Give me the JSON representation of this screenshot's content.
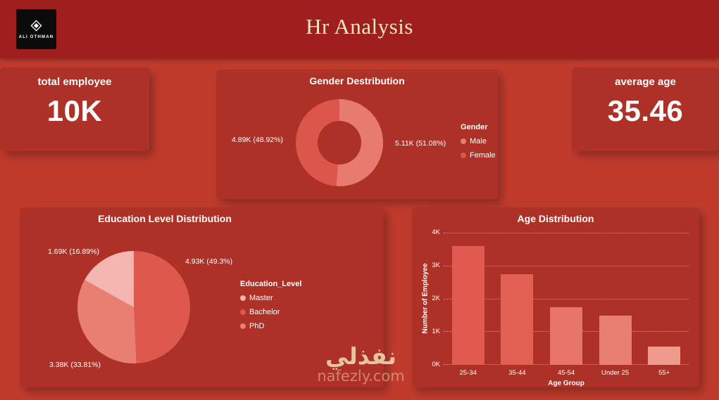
{
  "colors": {
    "background": "#c13b2d",
    "panel": "#ae3128",
    "header_bar": "#9e1f1d",
    "header_title_text": "#f3e2c3",
    "text": "#ffffff",
    "watermark": "#ecd9b6"
  },
  "header": {
    "title": "Hr Analysis",
    "logo_text": "ALI OTHMAN"
  },
  "kpi_left": {
    "label": "total employee",
    "value": "10K"
  },
  "kpi_right": {
    "label": "average age",
    "value": "35.46"
  },
  "watermark": {
    "arabic": "نفذلي",
    "site": "nafezly.com"
  },
  "chart_data": [
    {
      "id": "gender-donut",
      "type": "pie",
      "donut": true,
      "title": "Gender Destribution",
      "legend_title": "Gender",
      "legend_position": "right",
      "categories": [
        "Male",
        "Female"
      ],
      "values": [
        5110,
        4890
      ],
      "percentages": [
        51.08,
        48.92
      ],
      "labels": {
        "left": "4.89K (48.92%)",
        "right": "5.11K (51.08%)"
      },
      "colors": [
        "#e87b6f",
        "#dd564c"
      ],
      "slice_order": [
        0,
        1
      ]
    },
    {
      "id": "education-pie",
      "type": "pie",
      "donut": false,
      "title": "Education Level Distribution",
      "legend_title": "Education_Level",
      "legend_position": "right",
      "categories": [
        "Master",
        "Bachelor",
        "PhD"
      ],
      "values": [
        1690,
        4930,
        3380
      ],
      "percentages": [
        16.89,
        49.3,
        33.81
      ],
      "labels": {
        "top_left": "1.69K (16.89%)",
        "right": "4.93K (49.3%)",
        "bottom_left": "3.38K (33.81%)"
      },
      "colors": [
        "#f4b6b0",
        "#df584e",
        "#e97f73"
      ],
      "slice_order": [
        1,
        2,
        0
      ]
    },
    {
      "id": "age-bars",
      "type": "bar",
      "title": "Age Distribution",
      "categories": [
        "25-34",
        "35-44",
        "45-54",
        "Under 25",
        "55+"
      ],
      "values": [
        3600,
        2750,
        1750,
        1500,
        550
      ],
      "bar_colors": [
        "#e25a50",
        "#e25f54",
        "#e7756a",
        "#e97f73",
        "#f09a8d"
      ],
      "xlabel": "Age Group",
      "ylabel": "Number of Employee",
      "yticks_top_to_bottom": [
        "4K",
        "3K",
        "2K",
        "1K",
        "0K"
      ],
      "ylim": [
        0,
        4000
      ],
      "grid": "dotted horizontal"
    }
  ]
}
